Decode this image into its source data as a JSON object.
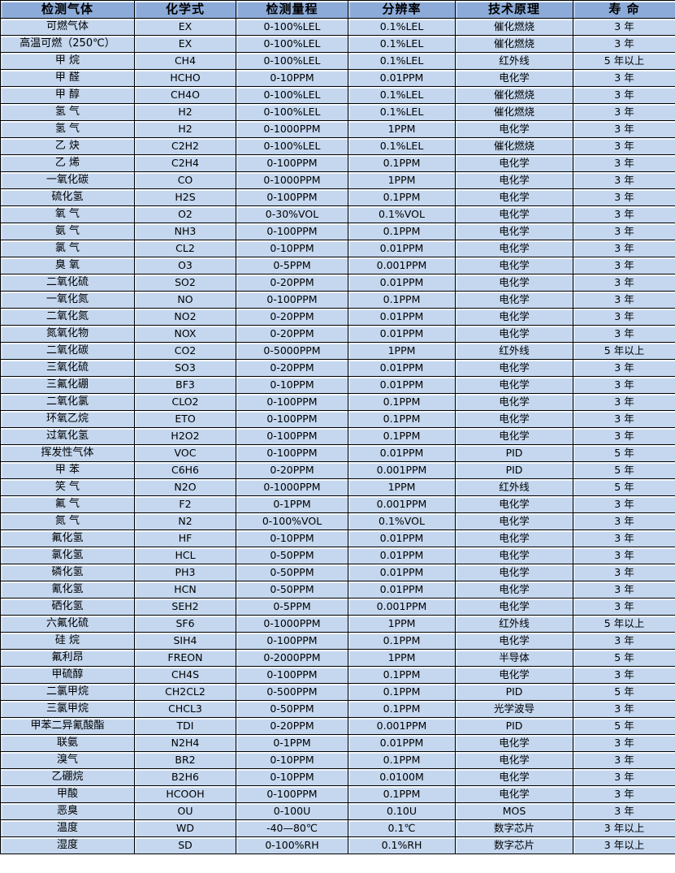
{
  "colors": {
    "header_bg": "#8cabd9",
    "cell_bg": "#c4d7ef",
    "grid": "#000000",
    "text": "#000000"
  },
  "table": {
    "headers": [
      "检测气体",
      "化学式",
      "检测量程",
      "分辨率",
      "技术原理",
      "寿 命"
    ],
    "column_keys": [
      "gas-name",
      "formula",
      "range",
      "resolution",
      "principle",
      "lifespan"
    ],
    "rows": [
      [
        "可燃气体",
        "EX",
        "0-100%LEL",
        "0.1%LEL",
        "催化燃烧",
        "3 年"
      ],
      [
        "高温可燃（250℃）",
        "EX",
        "0-100%LEL",
        "0.1%LEL",
        "催化燃烧",
        "3 年"
      ],
      [
        "甲 烷",
        "CH4",
        "0-100%LEL",
        "0.1%LEL",
        "红外线",
        "5 年以上"
      ],
      [
        "甲 醛",
        "HCHO",
        "0-10PPM",
        "0.01PPM",
        "电化学",
        "3 年"
      ],
      [
        "甲 醇",
        "CH4O",
        "0-100%LEL",
        "0.1%LEL",
        "催化燃烧",
        "3 年"
      ],
      [
        "氢 气",
        "H2",
        "0-100%LEL",
        "0.1%LEL",
        "催化燃烧",
        "3 年"
      ],
      [
        "氢 气",
        "H2",
        "0-1000PPM",
        "1PPM",
        "电化学",
        "3 年"
      ],
      [
        "乙 炔",
        "C2H2",
        "0-100%LEL",
        "0.1%LEL",
        "催化燃烧",
        "3 年"
      ],
      [
        "乙 烯",
        "C2H4",
        "0-100PPM",
        "0.1PPM",
        "电化学",
        "3 年"
      ],
      [
        "一氧化碳",
        "CO",
        "0-1000PPM",
        "1PPM",
        "电化学",
        "3 年"
      ],
      [
        "硫化氢",
        "H2S",
        "0-100PPM",
        "0.1PPM",
        "电化学",
        "3 年"
      ],
      [
        "氧 气",
        "O2",
        "0-30%VOL",
        "0.1%VOL",
        "电化学",
        "3 年"
      ],
      [
        "氨 气",
        "NH3",
        "0-100PPM",
        "0.1PPM",
        "电化学",
        "3 年"
      ],
      [
        "氯 气",
        "CL2",
        "0-10PPM",
        "0.01PPM",
        "电化学",
        "3 年"
      ],
      [
        "臭 氧",
        "O3",
        "0-5PPM",
        "0.001PPM",
        "电化学",
        "3 年"
      ],
      [
        "二氧化硫",
        "SO2",
        "0-20PPM",
        "0.01PPM",
        "电化学",
        "3 年"
      ],
      [
        "一氧化氮",
        "NO",
        "0-100PPM",
        "0.1PPM",
        "电化学",
        "3 年"
      ],
      [
        "二氧化氮",
        "NO2",
        "0-20PPM",
        "0.01PPM",
        "电化学",
        "3 年"
      ],
      [
        "氮氧化物",
        "NOX",
        "0-20PPM",
        "0.01PPM",
        "电化学",
        "3 年"
      ],
      [
        "二氧化碳",
        "CO2",
        "0-5000PPM",
        "1PPM",
        "红外线",
        "5 年以上"
      ],
      [
        "三氧化硫",
        "SO3",
        "0-20PPM",
        "0.01PPM",
        "电化学",
        "3 年"
      ],
      [
        "三氟化硼",
        "BF3",
        "0-10PPM",
        "0.01PPM",
        "电化学",
        "3 年"
      ],
      [
        "二氧化氯",
        "CLO2",
        "0-100PPM",
        "0.1PPM",
        "电化学",
        "3 年"
      ],
      [
        "环氧乙烷",
        "ETO",
        "0-100PPM",
        "0.1PPM",
        "电化学",
        "3 年"
      ],
      [
        "过氧化氢",
        "H2O2",
        "0-100PPM",
        "0.1PPM",
        "电化学",
        "3 年"
      ],
      [
        "挥发性气体",
        "VOC",
        "0-100PPM",
        "0.01PPM",
        "PID",
        "5 年"
      ],
      [
        "甲 苯",
        "C6H6",
        "0-20PPM",
        "0.001PPM",
        "PID",
        "5 年"
      ],
      [
        "笑 气",
        "N2O",
        "0-1000PPM",
        "1PPM",
        "红外线",
        "5 年"
      ],
      [
        "氟 气",
        "F2",
        "0-1PPM",
        "0.001PPM",
        "电化学",
        "3 年"
      ],
      [
        "氮 气",
        "N2",
        "0-100%VOL",
        "0.1%VOL",
        "电化学",
        "3 年"
      ],
      [
        "氟化氢",
        "HF",
        "0-10PPM",
        "0.01PPM",
        "电化学",
        "3 年"
      ],
      [
        "氯化氢",
        "HCL",
        "0-50PPM",
        "0.01PPM",
        "电化学",
        "3 年"
      ],
      [
        "磷化氢",
        "PH3",
        "0-50PPM",
        "0.01PPM",
        "电化学",
        "3 年"
      ],
      [
        "氰化氢",
        "HCN",
        "0-50PPM",
        "0.01PPM",
        "电化学",
        "3 年"
      ],
      [
        "硒化氢",
        "SEH2",
        "0-5PPM",
        "0.001PPM",
        "电化学",
        "3 年"
      ],
      [
        "六氟化硫",
        "SF6",
        "0-1000PPM",
        "1PPM",
        "红外线",
        "5 年以上"
      ],
      [
        "硅 烷",
        "SIH4",
        "0-100PPM",
        "0.1PPM",
        "电化学",
        "3 年"
      ],
      [
        "氟利昂",
        "FREON",
        "0-2000PPM",
        "1PPM",
        "半导体",
        "5 年"
      ],
      [
        "甲硫醇",
        "CH4S",
        "0-100PPM",
        "0.1PPM",
        "电化学",
        "3 年"
      ],
      [
        "二氯甲烷",
        "CH2CL2",
        "0-500PPM",
        "0.1PPM",
        "PID",
        "5 年"
      ],
      [
        "三氯甲烷",
        "CHCL3",
        "0-50PPM",
        "0.1PPM",
        "光学波导",
        "3 年"
      ],
      [
        "甲苯二异氰酸酯",
        "TDI",
        "0-20PPM",
        "0.001PPM",
        "PID",
        "5 年"
      ],
      [
        "联氨",
        "N2H4",
        "0-1PPM",
        "0.01PPM",
        "电化学",
        "3 年"
      ],
      [
        "溴气",
        "BR2",
        "0-10PPM",
        "0.1PPM",
        "电化学",
        "3 年"
      ],
      [
        "乙硼烷",
        "B2H6",
        "0-10PPM",
        "0.0100M",
        "电化学",
        "3 年"
      ],
      [
        "甲酸",
        "HCOOH",
        "0-100PPM",
        "0.1PPM",
        "电化学",
        "3 年"
      ],
      [
        "恶臭",
        "OU",
        "0-100U",
        "0.10U",
        "MOS",
        "3 年"
      ],
      [
        "温度",
        "WD",
        "-40—80℃",
        "0.1℃",
        "数字芯片",
        "3 年以上"
      ],
      [
        "湿度",
        "SD",
        "0-100%RH",
        "0.1%RH",
        "数字芯片",
        "3 年以上"
      ]
    ]
  }
}
